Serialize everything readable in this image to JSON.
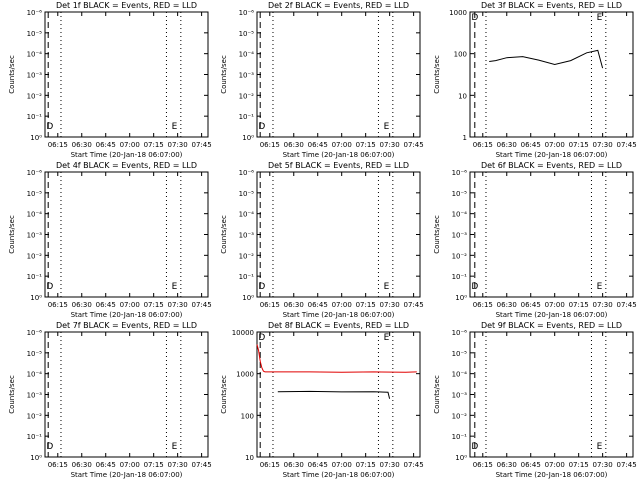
{
  "chart_data": [
    {
      "type": "line",
      "title": "Det 1f BLACK = Events, RED = LLD",
      "xlabel": "Start Time (20-Jan-18 06:07:00)",
      "ylabel": "Counts/sec",
      "x_ticks": [
        "06:15",
        "06:30",
        "06:45",
        "07:00",
        "07:15",
        "07:30",
        "07:45"
      ],
      "y_ticks": [
        "10⁰",
        "10⁻¹",
        "10⁻²",
        "10⁻³",
        "10⁻⁴",
        "10⁻⁵",
        "10⁻⁶"
      ],
      "markers": [
        {
          "label": "D",
          "x": "06:10"
        },
        {
          "label": "E",
          "x": "07:28"
        }
      ],
      "series": []
    },
    {
      "type": "line",
      "title": "Det 2f BLACK = Events, RED = LLD",
      "xlabel": "Start Time (20-Jan-18 06:07:00)",
      "ylabel": "Counts/sec",
      "x_ticks": [
        "06:15",
        "06:30",
        "06:45",
        "07:00",
        "07:15",
        "07:30",
        "07:45"
      ],
      "y_ticks": [
        "10⁰",
        "10⁻¹",
        "10⁻²",
        "10⁻³",
        "10⁻⁴",
        "10⁻⁵",
        "10⁻⁶"
      ],
      "markers": [
        {
          "label": "D",
          "x": "06:10"
        },
        {
          "label": "E",
          "x": "07:28"
        }
      ],
      "series": []
    },
    {
      "type": "line",
      "title": "Det 3f BLACK = Events, RED = LLD",
      "xlabel": "Start Time (20-Jan-18 06:07:00)",
      "ylabel": "Counts/sec",
      "x_ticks": [
        "06:15",
        "06:30",
        "06:45",
        "07:00",
        "07:15",
        "07:30",
        "07:45"
      ],
      "y_ticks": [
        "1",
        "10",
        "100",
        "1000"
      ],
      "markers": [
        {
          "label": "D",
          "x": "06:10"
        },
        {
          "label": "E",
          "x": "07:28"
        }
      ],
      "series": [
        {
          "color": "#000000",
          "x": [
            "06:19",
            "06:23",
            "06:30",
            "06:40",
            "06:50",
            "07:00",
            "07:10",
            "07:20",
            "07:27",
            "07:30"
          ],
          "y": [
            65,
            68,
            80,
            85,
            70,
            55,
            68,
            105,
            120,
            45
          ]
        }
      ]
    },
    {
      "type": "line",
      "title": "Det 4f BLACK = Events, RED = LLD",
      "xlabel": "Start Time (20-Jan-18 06:07:00)",
      "ylabel": "Counts/sec",
      "x_ticks": [
        "06:15",
        "06:30",
        "06:45",
        "07:00",
        "07:15",
        "07:30",
        "07:45"
      ],
      "y_ticks": [
        "10⁰",
        "10⁻¹",
        "10⁻²",
        "10⁻³",
        "10⁻⁴",
        "10⁻⁵",
        "10⁻⁶"
      ],
      "markers": [
        {
          "label": "D",
          "x": "06:10"
        },
        {
          "label": "E",
          "x": "07:28"
        }
      ],
      "series": []
    },
    {
      "type": "line",
      "title": "Det 5f BLACK = Events, RED = LLD",
      "xlabel": "Start Time (20-Jan-18 06:07:00)",
      "ylabel": "Counts/sec",
      "x_ticks": [
        "06:15",
        "06:30",
        "06:45",
        "07:00",
        "07:15",
        "07:30",
        "07:45"
      ],
      "y_ticks": [
        "10⁰",
        "10⁻¹",
        "10⁻²",
        "10⁻³",
        "10⁻⁴",
        "10⁻⁵",
        "10⁻⁶"
      ],
      "markers": [
        {
          "label": "D",
          "x": "06:10"
        },
        {
          "label": "E",
          "x": "07:28"
        }
      ],
      "series": []
    },
    {
      "type": "line",
      "title": "Det 6f BLACK = Events, RED = LLD",
      "xlabel": "Start Time (20-Jan-18 06:07:00)",
      "ylabel": "Counts/sec",
      "x_ticks": [
        "06:15",
        "06:30",
        "06:45",
        "07:00",
        "07:15",
        "07:30",
        "07:45"
      ],
      "y_ticks": [
        "10⁰",
        "10⁻¹",
        "10⁻²",
        "10⁻³",
        "10⁻⁴",
        "10⁻⁵",
        "10⁻⁶"
      ],
      "markers": [
        {
          "label": "D",
          "x": "06:10"
        },
        {
          "label": "E",
          "x": "07:28"
        }
      ],
      "series": []
    },
    {
      "type": "line",
      "title": "Det 7f BLACK = Events, RED = LLD",
      "xlabel": "Start Time (20-Jan-18 06:07:00)",
      "ylabel": "Counts/sec",
      "x_ticks": [
        "06:15",
        "06:30",
        "06:45",
        "07:00",
        "07:15",
        "07:30",
        "07:45"
      ],
      "y_ticks": [
        "10⁰",
        "10⁻¹",
        "10⁻²",
        "10⁻³",
        "10⁻⁴",
        "10⁻⁵",
        "10⁻⁶"
      ],
      "markers": [
        {
          "label": "D",
          "x": "06:10"
        },
        {
          "label": "E",
          "x": "07:28"
        }
      ],
      "series": []
    },
    {
      "type": "line",
      "title": "Det 8f BLACK = Events, RED = LLD",
      "xlabel": "Start Time (20-Jan-18 06:07:00)",
      "ylabel": "Counts/sec",
      "x_ticks": [
        "06:15",
        "06:30",
        "06:45",
        "07:00",
        "07:15",
        "07:30",
        "07:45"
      ],
      "y_ticks": [
        "10",
        "100",
        "1000",
        "10000"
      ],
      "markers": [
        {
          "label": "D",
          "x": "06:10"
        },
        {
          "label": "E",
          "x": "07:28"
        }
      ],
      "series": [
        {
          "color": "#e00000",
          "x": [
            "06:07",
            "06:08",
            "06:09",
            "06:10",
            "06:11",
            "06:12",
            "06:20",
            "06:40",
            "07:00",
            "07:20",
            "07:40",
            "07:47"
          ],
          "y": [
            5000,
            3600,
            2000,
            1400,
            1150,
            1100,
            1100,
            1100,
            1080,
            1100,
            1080,
            1100
          ]
        },
        {
          "color": "#000000",
          "x": [
            "06:20",
            "06:40",
            "07:00",
            "07:20",
            "07:29",
            "07:30"
          ],
          "y": [
            370,
            375,
            365,
            370,
            360,
            250
          ]
        }
      ]
    },
    {
      "type": "line",
      "title": "Det 9f BLACK = Events, RED = LLD",
      "xlabel": "Start Time (20-Jan-18 06:07:00)",
      "ylabel": "Counts/sec",
      "x_ticks": [
        "06:15",
        "06:30",
        "06:45",
        "07:00",
        "07:15",
        "07:30",
        "07:45"
      ],
      "y_ticks": [
        "10⁰",
        "10⁻¹",
        "10⁻²",
        "10⁻³",
        "10⁻⁴",
        "10⁻⁵",
        "10⁻⁶"
      ],
      "markers": [
        {
          "label": "D",
          "x": "06:10"
        },
        {
          "label": "E",
          "x": "07:28"
        }
      ],
      "series": []
    }
  ]
}
